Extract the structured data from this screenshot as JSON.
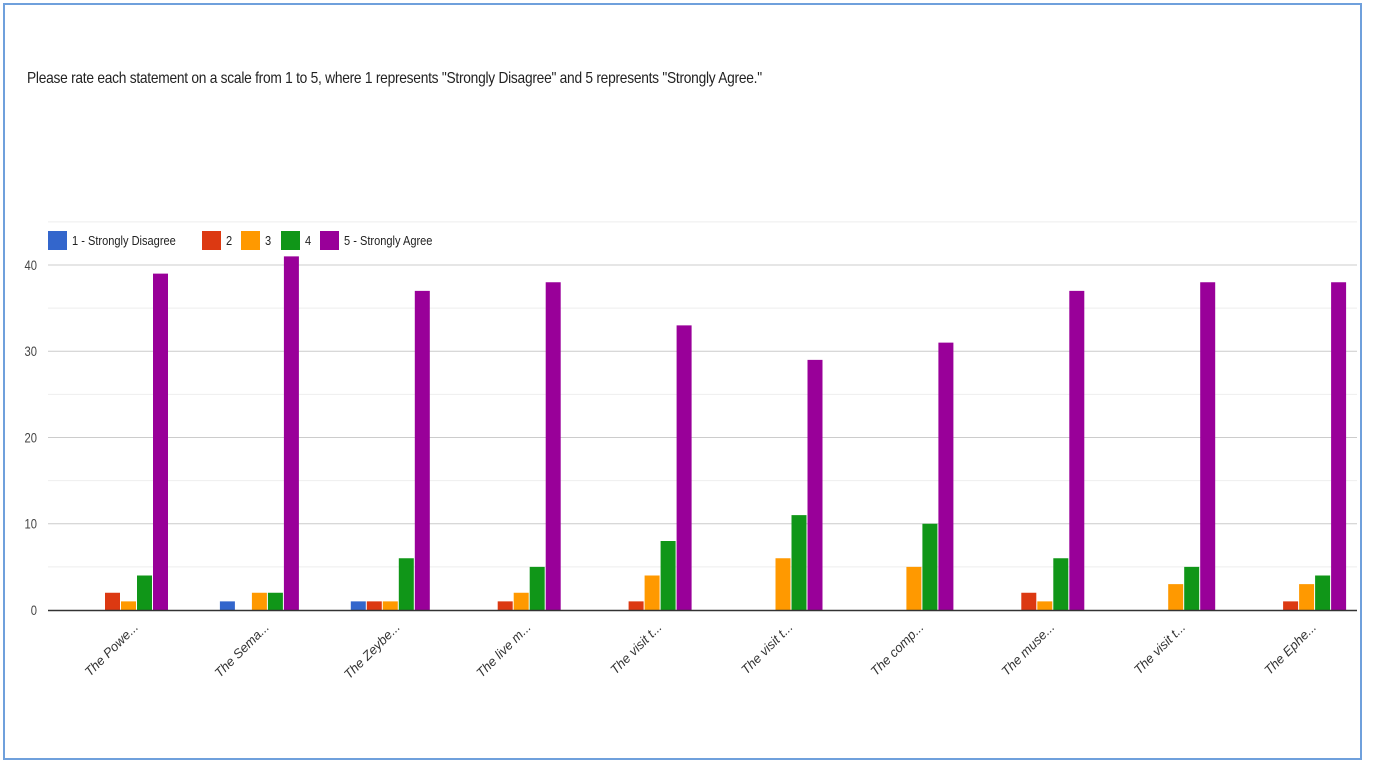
{
  "question": "Please rate each statement on a scale from 1 to 5, where 1 represents \"Strongly Disagree\" and 5 represents \"Strongly Agree.\"",
  "chart_data": {
    "type": "bar",
    "title": "",
    "xlabel": "",
    "ylabel": "",
    "ylim": [
      0,
      40
    ],
    "yticks": [
      0,
      10,
      20,
      30,
      40
    ],
    "grid": true,
    "legend_position": "top-left",
    "categories": [
      "The Powe...",
      "The Sema...",
      "The Zeybe...",
      "The live m...",
      "The visit t...",
      "The visit t...",
      "The comp...",
      "The muse...",
      "The visit t...",
      "The Ephe..."
    ],
    "series": [
      {
        "name": "1 - Strongly Disagree",
        "color": "#3366cc",
        "values": [
          0,
          1,
          1,
          0,
          0,
          0,
          0,
          0,
          0,
          0
        ]
      },
      {
        "name": "2",
        "color": "#dc3912",
        "values": [
          2,
          0,
          1,
          1,
          1,
          0,
          0,
          2,
          0,
          1
        ]
      },
      {
        "name": "3",
        "color": "#ff9900",
        "values": [
          1,
          2,
          1,
          2,
          4,
          6,
          5,
          1,
          3,
          3
        ]
      },
      {
        "name": "4",
        "color": "#109618",
        "values": [
          4,
          2,
          6,
          5,
          8,
          11,
          10,
          6,
          5,
          4
        ]
      },
      {
        "name": "5 - Strongly Agree",
        "color": "#990099",
        "values": [
          39,
          41,
          37,
          38,
          33,
          29,
          31,
          37,
          38,
          38
        ]
      }
    ]
  }
}
